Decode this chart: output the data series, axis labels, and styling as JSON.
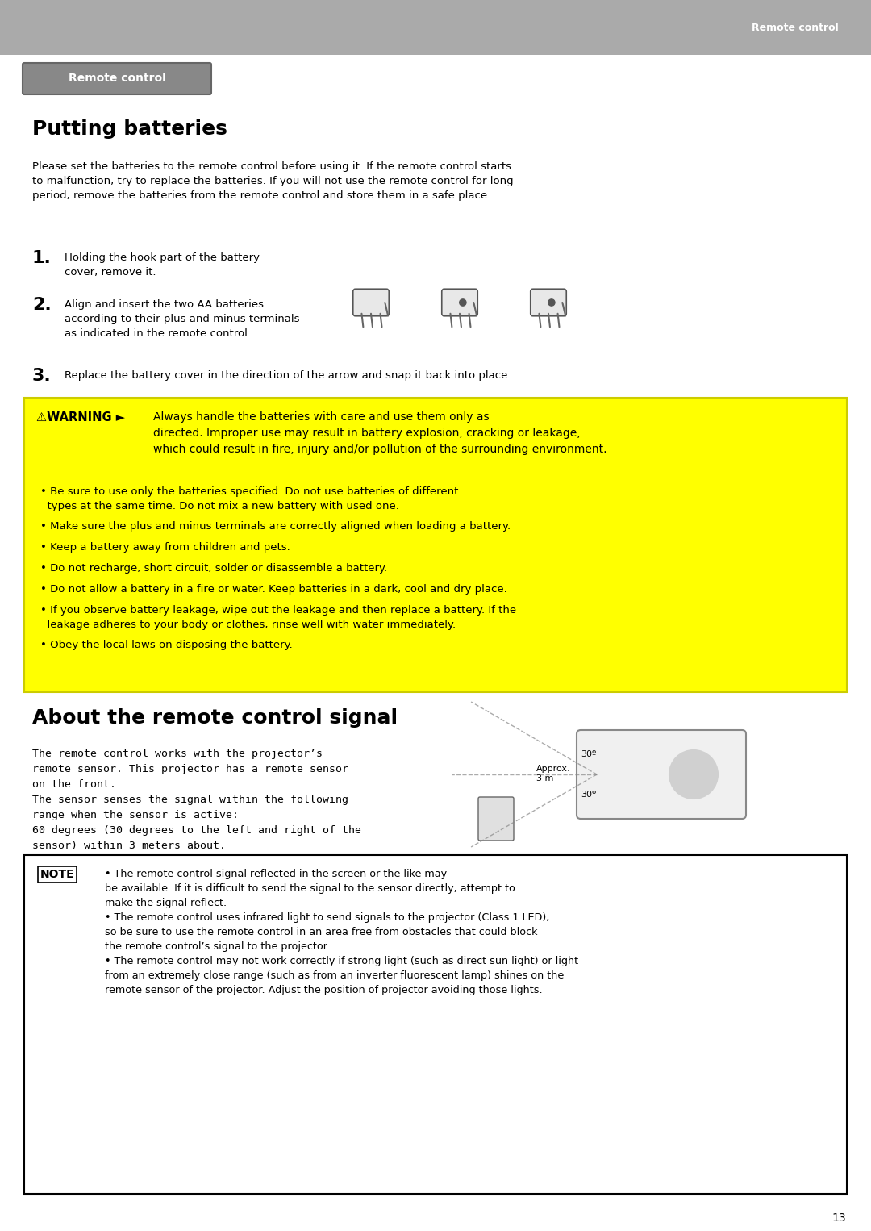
{
  "page_bg": "#ffffff",
  "header_bar_color": "#aaaaaa",
  "header_text": "Remote control",
  "header_text_color": "#ffffff",
  "section_badge_bg": "#888888",
  "section_badge_text": "Remote control",
  "section_badge_text_color": "#ffffff",
  "title1": "Putting batteries",
  "title1_color": "#000000",
  "body_color": "#000000",
  "intro_text": "Please set the batteries to the remote control before using it. If the remote control starts\nto malfunction, try to replace the batteries. If you will not use the remote control for long\nperiod, remove the batteries from the remote control and store them in a safe place.",
  "step1_num": "1.",
  "step1_text": "Holding the hook part of the battery\ncover, remove it.",
  "step2_num": "2.",
  "step2_text": "Align and insert the two AA batteries\naccording to their plus and minus terminals\nas indicated in the remote control.",
  "step3_num": "3.",
  "step3_text": "Replace the battery cover in the direction of the arrow and snap it back into place.",
  "warning_bg": "#ffff00",
  "warning_border": "#000000",
  "warning_title": "⚠WARNING ►",
  "warning_line1": "Always handle the batteries with care and use them only as\ndirected. Improper use may result in battery explosion, cracking or leakage,\nwhich could result in fire, injury and/or pollution of the surrounding environment.",
  "warning_bullets": [
    "• Be sure to use only the batteries specified. Do not use batteries of different\n  types at the same time. Do not mix a new battery with used one.",
    "• Make sure the plus and minus terminals are correctly aligned when loading a battery.",
    "• Keep a battery away from children and pets.",
    "• Do not recharge, short circuit, solder or disassemble a battery.",
    "• Do not allow a battery in a fire or water. Keep batteries in a dark, cool and dry place.",
    "• If you observe battery leakage, wipe out the leakage and then replace a battery. If the\n  leakage adheres to your body or clothes, rinse well with water immediately.",
    "• Obey the local laws on disposing the battery."
  ],
  "title2": "About the remote control signal",
  "title2_color": "#000000",
  "signal_text": "The remote control works with the projector’s\nremote sensor. This projector has a remote sensor\non the front.\nThe sensor senses the signal within the following\nrange when the sensor is active:\n60 degrees (30 degrees to the left and right of the\nsensor) within 3 meters about.",
  "note_border": "#000000",
  "note_title": "NOTE",
  "note_text": "• The remote control signal reflected in the screen or the like may\nbe available. If it is difficult to send the signal to the sensor directly, attempt to\nmake the signal reflect.\n• The remote control uses infrared light to send signals to the projector (Class 1 LED),\nso be sure to use the remote control in an area free from obstacles that could block\nthe remote control’s signal to the projector.\n• The remote control may not work correctly if strong light (such as direct sun light) or light\nfrom an extremely close range (such as from an inverter fluorescent lamp) shines on the\nremote sensor of the projector. Adjust the position of projector avoiding those lights.",
  "page_number": "13",
  "approx_text": "Approx.\n3 m",
  "angle_text1": "30º",
  "angle_text2": "30º"
}
